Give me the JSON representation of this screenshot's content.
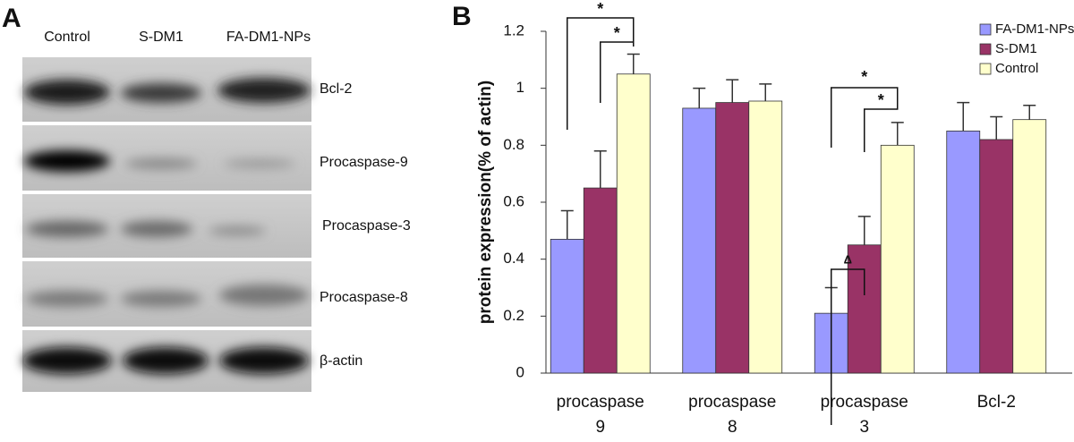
{
  "panel_a": {
    "label": "A",
    "lanes": [
      "Control",
      "S-DM1",
      "FA-DM1-NPs"
    ],
    "proteins": [
      "Bcl-2",
      "Procaspase-9",
      "Procaspase-3",
      "Procaspase-8",
      "β-actin"
    ]
  },
  "chart_data": {
    "type": "bar",
    "panel_label": "B",
    "ylabel": "protein expression(% of actin)",
    "categories": [
      "procaspase 9",
      "procaspase 8",
      "procaspase 3",
      "Bcl-2"
    ],
    "series": [
      {
        "name": "FA-DM1-NPs",
        "color": "#9999ff",
        "values": [
          0.47,
          0.93,
          0.21,
          0.85
        ],
        "errors": [
          0.1,
          0.07,
          0.09,
          0.1
        ]
      },
      {
        "name": "S-DM1",
        "color": "#993366",
        "values": [
          0.65,
          0.95,
          0.45,
          0.82
        ],
        "errors": [
          0.13,
          0.08,
          0.1,
          0.08
        ]
      },
      {
        "name": "Control",
        "color": "#ffffcc",
        "values": [
          1.05,
          0.955,
          0.8,
          0.89
        ],
        "errors": [
          0.07,
          0.06,
          0.08,
          0.05
        ]
      }
    ],
    "ylim": [
      0,
      1.2
    ],
    "yticks": [
      0,
      0.2,
      0.4,
      0.6,
      0.8,
      1,
      1.2
    ],
    "annotations": [
      "*",
      "*",
      "*",
      "*",
      "Δ"
    ],
    "legend": "top-right"
  }
}
